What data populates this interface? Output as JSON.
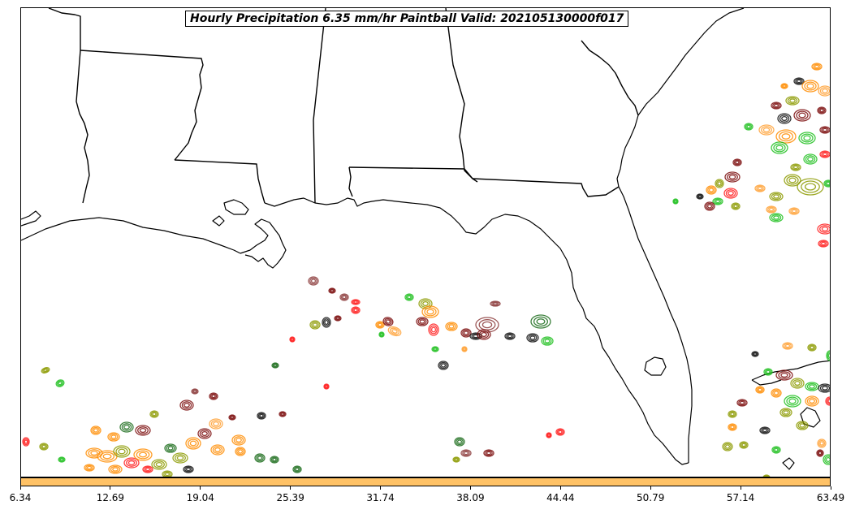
{
  "title": "Hourly Precipitation 6.35 mm/hr Paintball Valid: 202105130000f017",
  "colorbar": {
    "color": "#ffc266",
    "ticks": [
      "6.34",
      "12.69",
      "19.04",
      "25.39",
      "31.74",
      "38.09",
      "44.44",
      "50.79",
      "57.14",
      "63.49"
    ]
  },
  "palette": {
    "red": "#ff1a1a",
    "green": "#1fbf1f",
    "orange": "#ff8c00",
    "black": "#111111",
    "olive": "#8c9a00",
    "maroon": "#7a0a0a",
    "darkgreen": "#1a6b1a",
    "light-orange": "#ffa033",
    "brown": "#8b3a3a"
  },
  "map": {
    "coastline_color": "#000000",
    "state_border_color": "#000000",
    "background": "#ffffff"
  }
}
